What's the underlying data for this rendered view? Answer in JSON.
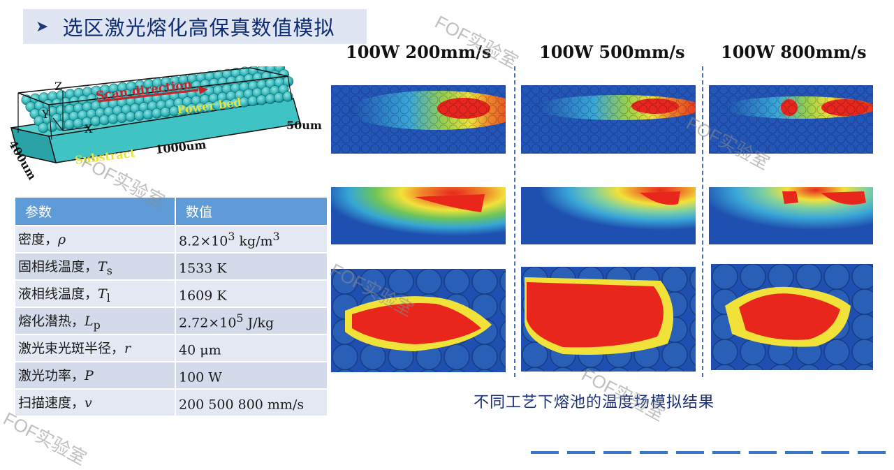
{
  "slide": {
    "title_arrow": "➤",
    "title": "选区激光熔化高保真数值模拟"
  },
  "bed_diagram": {
    "scan_direction": "Scan direction",
    "powder_bed": "Power bed",
    "substrate": "Substract",
    "length": "1000um",
    "width": "400um",
    "height": "50um",
    "axis_z": "Z",
    "axis_y": "Y",
    "axis_x": "X"
  },
  "params_table": {
    "header_param": "参数",
    "header_value": "数值",
    "rows": [
      {
        "name": "密度，",
        "symbol": "ρ",
        "sub": "",
        "value": "8.2×10",
        "exp": "3",
        "unit": " kg/m",
        "unit_exp": "3"
      },
      {
        "name": "固相线温度，",
        "symbol": "T",
        "sub": "s",
        "value": "1533 K",
        "exp": "",
        "unit": "",
        "unit_exp": ""
      },
      {
        "name": "液相线温度，",
        "symbol": "T",
        "sub": "l",
        "value": "1609 K",
        "exp": "",
        "unit": "",
        "unit_exp": ""
      },
      {
        "name": "熔化潜热，",
        "symbol": "L",
        "sub": "p",
        "value": "2.72×10",
        "exp": "5",
        "unit": " J/kg",
        "unit_exp": ""
      },
      {
        "name": "激光束光斑半径，",
        "symbol": "r",
        "sub": "",
        "value": "40 μm",
        "exp": "",
        "unit": "",
        "unit_exp": ""
      },
      {
        "name": "激光功率，",
        "symbol": "P",
        "sub": "",
        "value": "100 W",
        "exp": "",
        "unit": "",
        "unit_exp": ""
      },
      {
        "name": "扫描速度，",
        "symbol": "v",
        "sub": "",
        "value": "200 500 800 mm/s",
        "exp": "",
        "unit": "",
        "unit_exp": ""
      }
    ]
  },
  "simulation": {
    "columns": [
      "100W 200mm/s",
      "100W 500mm/s",
      "100W 800mm/s"
    ],
    "caption": "不同工艺下熔池的温度场模拟结果"
  },
  "watermark": "FOF实验室",
  "colors": {
    "title_bg": "#dfe6f2",
    "title_text": "#0e2c72",
    "table_header": "#5f9bd6",
    "table_row": "#e3e8f2",
    "cold": "#1f4fb0",
    "hot": "#e8261c",
    "caption": "#1b2f7a",
    "powder": "#3fc3c4"
  }
}
